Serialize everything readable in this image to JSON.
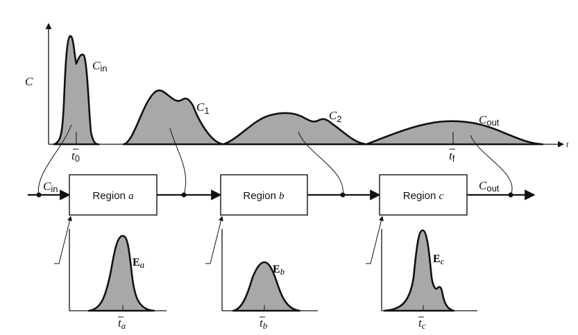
{
  "top_plot": {
    "y_axis_label": "C",
    "x_axis_label": "t",
    "curves": [
      {
        "label": "C",
        "subscript": "in"
      },
      {
        "label": "C",
        "subscript": "1"
      },
      {
        "label": "C",
        "subscript": "2"
      },
      {
        "label": "C",
        "subscript": "out"
      }
    ],
    "ticks": [
      {
        "label": "t",
        "subscript": "0"
      },
      {
        "label": "t",
        "subscript": "f"
      }
    ]
  },
  "flow": {
    "input_label": {
      "label": "C",
      "subscript": "in"
    },
    "output_label": {
      "label": "C",
      "subscript": "out"
    },
    "regions": [
      {
        "prefix": "Region",
        "letter": "a"
      },
      {
        "prefix": "Region",
        "letter": "b"
      },
      {
        "prefix": "Region",
        "letter": "c"
      }
    ]
  },
  "rtd_plots": [
    {
      "label": "E",
      "subscript": "a",
      "tick": "t",
      "tick_subscript": "a"
    },
    {
      "label": "E",
      "subscript": "b",
      "tick": "t",
      "tick_subscript": "b"
    },
    {
      "label": "E",
      "subscript": "c",
      "tick": "t",
      "tick_subscript": "c"
    }
  ]
}
